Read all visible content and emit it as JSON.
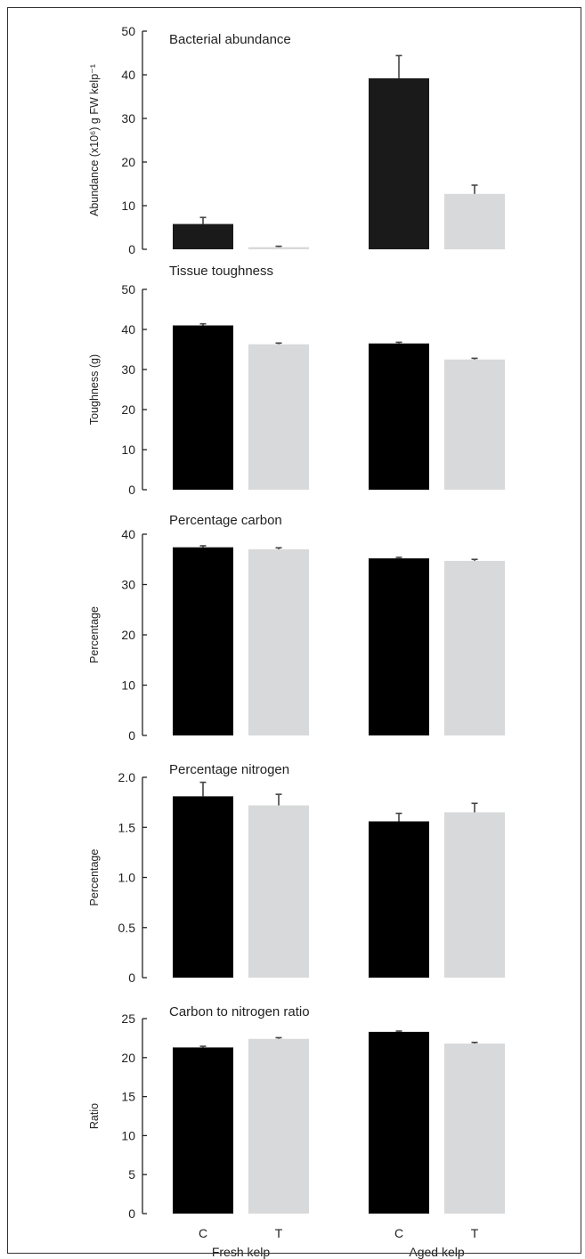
{
  "groups": [
    "Fresh kelp",
    "Aged kelp"
  ],
  "treatments": [
    "C",
    "T"
  ],
  "colors": {
    "control": "#1a1a1a",
    "treatment": "#d8d9da",
    "axis": "#222222",
    "errorbar": "#444444"
  },
  "chart_data": [
    {
      "type": "bar",
      "title": "Bacterial abundance",
      "ylabel": "Abundance (x10⁶) g FW kelp⁻¹",
      "ylim": [
        0,
        50
      ],
      "yticks": [
        0,
        10,
        20,
        30,
        40,
        50
      ],
      "ytick_labels": [
        "0",
        "10",
        "20",
        "30",
        "40",
        "50"
      ],
      "categories": [
        "C",
        "T",
        "C",
        "T"
      ],
      "groups": [
        "Fresh kelp",
        "Fresh kelp",
        "Aged kelp",
        "Aged kelp"
      ],
      "values": [
        5.8,
        0.5,
        39.2,
        12.7
      ],
      "errors": [
        1.5,
        0.2,
        5.2,
        2.0
      ],
      "colors": [
        "#1a1a1a",
        "#d8d9da",
        "#1a1a1a",
        "#d8d9da"
      ]
    },
    {
      "type": "bar",
      "title": "Tissue toughness",
      "ylabel": "Toughness (g)",
      "ylim": [
        0,
        50
      ],
      "yticks": [
        0,
        10,
        20,
        30,
        40,
        50
      ],
      "ytick_labels": [
        "0",
        "10",
        "20",
        "30",
        "40",
        "50"
      ],
      "categories": [
        "C",
        "T",
        "C",
        "T"
      ],
      "groups": [
        "Fresh kelp",
        "Fresh kelp",
        "Aged kelp",
        "Aged kelp"
      ],
      "values": [
        41.0,
        36.3,
        36.5,
        32.5
      ],
      "errors": [
        0.4,
        0.3,
        0.3,
        0.3
      ],
      "colors": [
        "#000000",
        "#d8d9da",
        "#000000",
        "#d8d9da"
      ]
    },
    {
      "type": "bar",
      "title": "Percentage carbon",
      "ylabel": "Percentage",
      "ylim": [
        0,
        40
      ],
      "yticks": [
        0,
        10,
        20,
        30,
        40
      ],
      "ytick_labels": [
        "0",
        "10",
        "20",
        "30",
        "40"
      ],
      "categories": [
        "C",
        "T",
        "C",
        "T"
      ],
      "groups": [
        "Fresh kelp",
        "Fresh kelp",
        "Aged kelp",
        "Aged kelp"
      ],
      "values": [
        37.4,
        37.0,
        35.2,
        34.7
      ],
      "errors": [
        0.3,
        0.3,
        0.2,
        0.3
      ],
      "colors": [
        "#000000",
        "#d8d9da",
        "#000000",
        "#d8d9da"
      ]
    },
    {
      "type": "bar",
      "title": "Percentage nitrogen",
      "ylabel": "Percentage",
      "ylim": [
        0,
        2.0
      ],
      "yticks": [
        0,
        0.5,
        1.0,
        1.5,
        2.0
      ],
      "ytick_labels": [
        "0",
        "0.5",
        "1.0",
        "1.5",
        "2.0"
      ],
      "categories": [
        "C",
        "T",
        "C",
        "T"
      ],
      "groups": [
        "Fresh kelp",
        "Fresh kelp",
        "Aged kelp",
        "Aged kelp"
      ],
      "values": [
        1.81,
        1.72,
        1.56,
        1.65
      ],
      "errors": [
        0.14,
        0.11,
        0.08,
        0.09
      ],
      "colors": [
        "#000000",
        "#d8d9da",
        "#000000",
        "#d8d9da"
      ]
    },
    {
      "type": "bar",
      "title": "Carbon to nitrogen ratio",
      "ylabel": "Ratio",
      "ylim": [
        0,
        25
      ],
      "yticks": [
        0,
        5,
        10,
        15,
        20,
        25
      ],
      "ytick_labels": [
        "0",
        "5",
        "10",
        "15",
        "20",
        "25"
      ],
      "categories": [
        "C",
        "T",
        "C",
        "T"
      ],
      "groups": [
        "Fresh kelp",
        "Fresh kelp",
        "Aged kelp",
        "Aged kelp"
      ],
      "values": [
        21.3,
        22.4,
        23.3,
        21.8
      ],
      "errors": [
        0.15,
        0.15,
        0.1,
        0.15
      ],
      "colors": [
        "#000000",
        "#d8d9da",
        "#000000",
        "#d8d9da"
      ]
    }
  ]
}
